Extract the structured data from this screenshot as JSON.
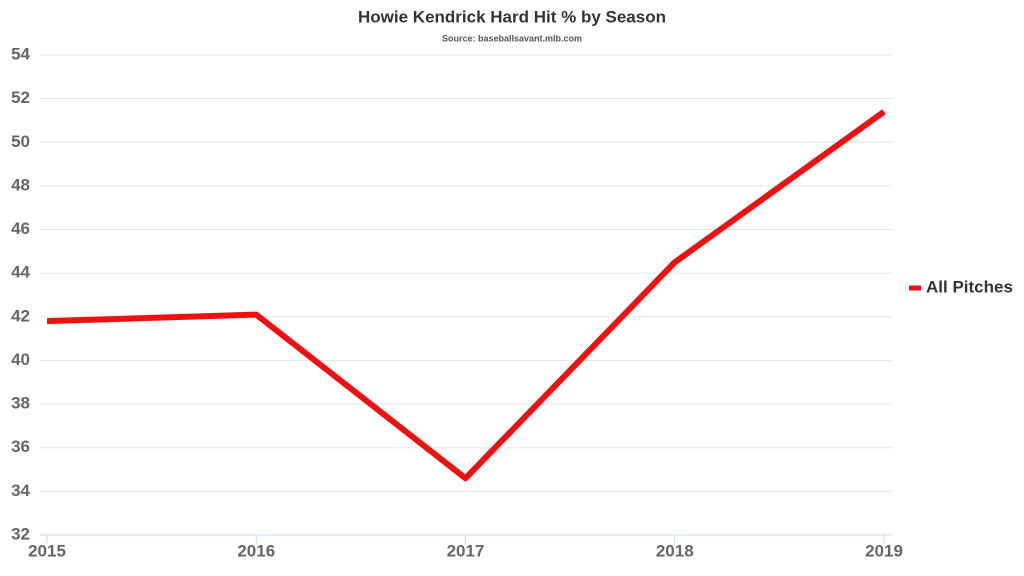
{
  "chart_data": {
    "type": "line",
    "title": "Howie Kendrick Hard Hit % by Season",
    "subtitle": "Source: baseballsavant.mlb.com",
    "x": [
      2015,
      2016,
      2017,
      2018,
      2019
    ],
    "series": [
      {
        "name": "All Pitches",
        "color": "#ee1111",
        "values": [
          41.8,
          42.1,
          34.6,
          44.5,
          51.4
        ]
      }
    ],
    "xlim": [
      2015,
      2019
    ],
    "xticks": [
      2015,
      2016,
      2017,
      2018,
      2019
    ],
    "ylim": [
      32,
      54
    ],
    "yticks": [
      32,
      34,
      36,
      38,
      40,
      42,
      44,
      46,
      48,
      50,
      52,
      54
    ],
    "grid": true,
    "legend": "right"
  }
}
